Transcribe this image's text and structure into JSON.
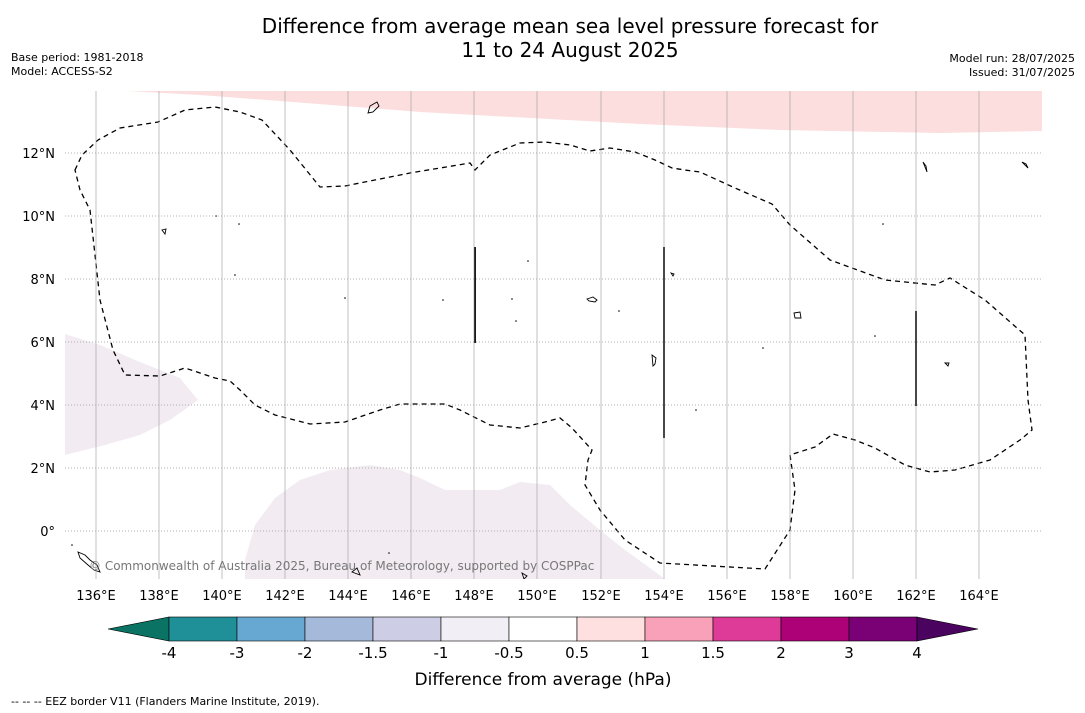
{
  "header": {
    "title_line1": "Difference from average mean sea level pressure forecast for",
    "title_line2": "11 to 24 August 2025",
    "base_period": "Base period: 1981-2018",
    "model": "Model: ACCESS-S2",
    "model_run": "Model run: 28/07/2025",
    "issued": "Issued: 31/07/2025"
  },
  "map": {
    "lon_ticks": [
      "136°E",
      "138°E",
      "140°E",
      "142°E",
      "144°E",
      "146°E",
      "148°E",
      "150°E",
      "152°E",
      "154°E",
      "156°E",
      "158°E",
      "160°E",
      "162°E",
      "164°E"
    ],
    "lat_ticks": [
      "12°N",
      "10°N",
      "8°N",
      "6°N",
      "4°N",
      "2°N",
      "0°"
    ],
    "copyright": "© Commonwealth of Australia 2025, Bureau of Meteorology, supported by COSPPac",
    "colors": {
      "high_shade": "#fcdede",
      "low_shade": "#f2ecf2",
      "eez_border": "#000000",
      "gridline": "#999999"
    }
  },
  "colorbar": {
    "labels": [
      "-4",
      "-3",
      "-2",
      "-1.5",
      "-1",
      "-0.5",
      "0.5",
      "1",
      "1.5",
      "2",
      "3",
      "4"
    ],
    "colors": [
      "#1f8f98",
      "#66a8d2",
      "#a5b9db",
      "#cdcde5",
      "#f2eef6",
      "#ffffff",
      "#fee0e0",
      "#f9a1b8",
      "#dd3b97",
      "#ad0178",
      "#7a0076"
    ],
    "under_color": "#0b7363",
    "over_color": "#4b0360",
    "title": "Difference from average (hPa)"
  },
  "footnote": "--  --  -- EEZ border V11 (Flanders Marine Institute, 2019)."
}
